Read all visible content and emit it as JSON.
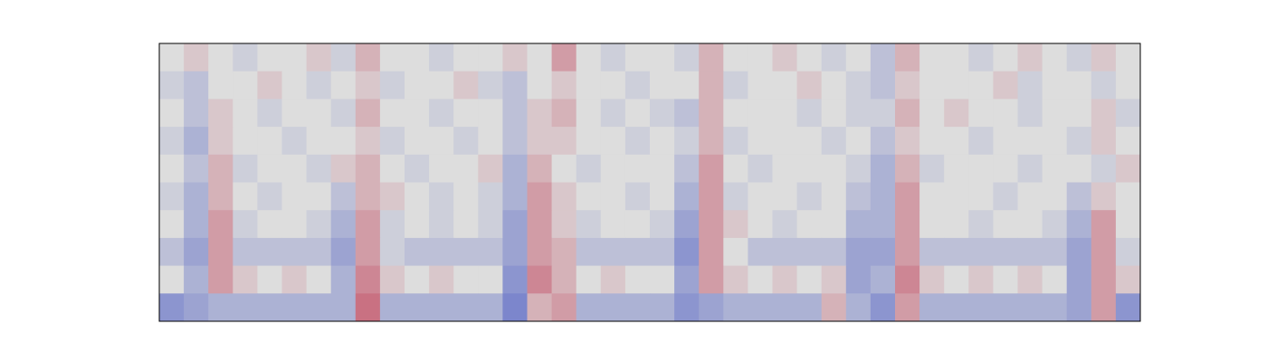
{
  "chart_data": {
    "type": "heatmap",
    "colormap": "coolwarm",
    "zlim": [
      -1,
      1
    ],
    "z": [
      [
        0,
        0.1,
        0,
        -0.1,
        0,
        0,
        0.1,
        -0.1,
        0.2,
        0,
        0,
        -0.1,
        0,
        0,
        0.1,
        0,
        0.3,
        0,
        -0.1,
        0,
        0,
        -0.1,
        0.2,
        0,
        0,
        0.1,
        0,
        -0.1,
        0,
        -0.2,
        0.2,
        0,
        0,
        -0.1,
        0,
        0.1,
        0,
        -0.1,
        0.1,
        0
      ],
      [
        -0.1,
        -0.2,
        0,
        0,
        0.1,
        0,
        -0.1,
        0,
        0.1,
        -0.1,
        0,
        0,
        0.1,
        -0.1,
        -0.2,
        0,
        0.1,
        0,
        0,
        -0.1,
        0,
        0,
        0.2,
        -0.1,
        0,
        0,
        0.1,
        0,
        -0.1,
        -0.2,
        0.1,
        0,
        0,
        0,
        0.1,
        -0.1,
        0,
        0,
        -0.1,
        0
      ],
      [
        0,
        -0.2,
        0.1,
        0,
        -0.1,
        0,
        0,
        -0.1,
        0.2,
        0,
        0,
        -0.1,
        0,
        0,
        -0.2,
        0.1,
        0.2,
        0,
        -0.1,
        0,
        -0.1,
        -0.2,
        0.2,
        0,
        0,
        0,
        -0.1,
        0,
        -0.1,
        -0.1,
        0.2,
        0,
        0.1,
        0,
        0,
        -0.1,
        0,
        0,
        0.1,
        -0.1
      ],
      [
        -0.1,
        -0.3,
        0.1,
        0,
        0,
        -0.1,
        0,
        0,
        0.1,
        -0.1,
        0,
        0,
        -0.1,
        0,
        -0.2,
        0.1,
        0.1,
        0,
        0,
        -0.1,
        0,
        -0.1,
        0.2,
        -0.1,
        0,
        0,
        0,
        -0.1,
        0,
        -0.2,
        0.1,
        0,
        0,
        -0.1,
        0,
        0,
        0,
        -0.1,
        0.1,
        0
      ],
      [
        0,
        -0.2,
        0.2,
        -0.1,
        0,
        0,
        -0.1,
        0.1,
        0.2,
        0,
        -0.1,
        0,
        0,
        0.1,
        -0.3,
        0.2,
        0,
        -0.1,
        0,
        0,
        0,
        -0.2,
        0.3,
        0,
        -0.1,
        0,
        0,
        0,
        -0.1,
        -0.3,
        0.2,
        -0.1,
        0,
        0,
        0,
        -0.1,
        0,
        0,
        -0.1,
        0.1
      ],
      [
        -0.1,
        -0.3,
        0.2,
        0,
        -0.1,
        0,
        0,
        -0.2,
        0.2,
        0.1,
        0,
        -0.1,
        0,
        -0.1,
        -0.3,
        0.3,
        0.1,
        0,
        0,
        -0.1,
        0,
        -0.3,
        0.3,
        -0.1,
        0,
        0,
        -0.1,
        0,
        -0.2,
        -0.3,
        0.3,
        0,
        0,
        0,
        -0.1,
        0,
        0,
        -0.2,
        0.1,
        0
      ],
      [
        0,
        -0.3,
        0.3,
        -0.1,
        0,
        0,
        -0.1,
        -0.3,
        0.3,
        -0.1,
        0,
        -0.1,
        0,
        -0.1,
        -0.4,
        0.3,
        0.1,
        -0.1,
        0,
        0,
        -0.1,
        -0.4,
        0.3,
        0.1,
        0,
        -0.1,
        0,
        0,
        -0.3,
        -0.3,
        0.3,
        0,
        0,
        -0.1,
        0,
        0,
        -0.1,
        -0.3,
        0.3,
        0
      ],
      [
        -0.2,
        -0.4,
        0.3,
        -0.2,
        -0.2,
        -0.2,
        -0.2,
        -0.4,
        0.3,
        -0.1,
        -0.2,
        -0.2,
        -0.2,
        -0.2,
        -0.4,
        0.3,
        0.2,
        -0.2,
        -0.2,
        -0.2,
        -0.2,
        -0.5,
        0.3,
        0,
        -0.2,
        -0.2,
        -0.2,
        -0.2,
        -0.4,
        -0.4,
        0.3,
        -0.2,
        -0.2,
        -0.2,
        -0.2,
        -0.2,
        -0.2,
        -0.4,
        0.3,
        -0.1
      ],
      [
        0,
        -0.3,
        0.3,
        0.1,
        0,
        0.1,
        0,
        -0.3,
        0.4,
        0.1,
        0,
        0.1,
        0,
        0,
        -0.5,
        0.4,
        0.2,
        0,
        0.1,
        0,
        0,
        -0.4,
        0.3,
        0.1,
        0,
        0.1,
        0,
        0.1,
        -0.4,
        -0.3,
        0.4,
        0.1,
        0,
        0.1,
        0,
        0.1,
        0,
        -0.4,
        0.3,
        0.1
      ],
      [
        -0.5,
        -0.4,
        -0.3,
        -0.3,
        -0.3,
        -0.3,
        -0.3,
        -0.3,
        0.5,
        -0.3,
        -0.3,
        -0.3,
        -0.3,
        -0.3,
        -0.6,
        0.2,
        0.3,
        -0.3,
        -0.3,
        -0.3,
        -0.3,
        -0.5,
        -0.4,
        -0.3,
        -0.3,
        -0.3,
        -0.3,
        0.2,
        -0.3,
        -0.5,
        0.3,
        -0.3,
        -0.3,
        -0.3,
        -0.3,
        -0.3,
        -0.3,
        -0.4,
        0.3,
        -0.5
      ]
    ]
  }
}
